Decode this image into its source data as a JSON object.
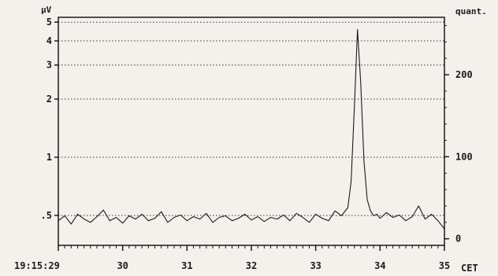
{
  "chart_data": {
    "type": "line",
    "title": "",
    "left_axis": {
      "label": "µV",
      "scale": "log",
      "ticks": [
        {
          "value": 5,
          "label": "5"
        },
        {
          "value": 4,
          "label": "4"
        },
        {
          "value": 3,
          "label": "3"
        },
        {
          "value": 2,
          "label": "2"
        },
        {
          "value": 1,
          "label": "1"
        },
        {
          "value": 0.5,
          "label": ".5"
        }
      ],
      "range": [
        0.35,
        5.3
      ]
    },
    "right_axis": {
      "label": "quant.",
      "scale": "linear",
      "ticks": [
        {
          "value": 200,
          "label": "200"
        },
        {
          "value": 100,
          "label": "100"
        },
        {
          "value": 0,
          "label": "0"
        }
      ],
      "range": [
        -8,
        270
      ]
    },
    "x_axis": {
      "start_label": "19:15:29",
      "end_label": "CET",
      "ticks": [
        {
          "value": 30,
          "label": "30"
        },
        {
          "value": 31,
          "label": "31"
        },
        {
          "value": 32,
          "label": "32"
        },
        {
          "value": 33,
          "label": "33"
        },
        {
          "value": 34,
          "label": "34"
        },
        {
          "value": 35,
          "label": "35"
        }
      ],
      "range": [
        29,
        35
      ]
    },
    "grid": "horizontal dotted",
    "series": [
      {
        "values_scale": "right_axis",
        "x": [
          29.0,
          29.1,
          29.2,
          29.3,
          29.4,
          29.5,
          29.6,
          29.7,
          29.8,
          29.9,
          30.0,
          30.1,
          30.2,
          30.3,
          30.4,
          30.5,
          30.6,
          30.7,
          30.8,
          30.9,
          31.0,
          31.1,
          31.2,
          31.3,
          31.4,
          31.5,
          31.6,
          31.7,
          31.8,
          31.9,
          32.0,
          32.1,
          32.2,
          32.3,
          32.4,
          32.5,
          32.6,
          32.7,
          32.8,
          32.9,
          33.0,
          33.1,
          33.2,
          33.3,
          33.4,
          33.5,
          33.55,
          33.6,
          33.65,
          33.7,
          33.75,
          33.8,
          33.85,
          33.9,
          33.95,
          34.0,
          34.1,
          34.2,
          34.3,
          34.4,
          34.5,
          34.6,
          34.7,
          34.8,
          34.9,
          35.0
        ],
        "y": [
          22,
          28,
          18,
          30,
          24,
          20,
          27,
          35,
          22,
          26,
          19,
          28,
          24,
          30,
          22,
          25,
          33,
          20,
          26,
          29,
          22,
          27,
          24,
          31,
          20,
          26,
          28,
          22,
          25,
          30,
          23,
          27,
          21,
          26,
          24,
          29,
          22,
          31,
          26,
          20,
          30,
          25,
          22,
          34,
          28,
          38,
          70,
          160,
          255,
          190,
          95,
          48,
          34,
          28,
          30,
          25,
          32,
          26,
          29,
          22,
          27,
          40,
          24,
          30,
          22,
          12
        ]
      }
    ]
  }
}
